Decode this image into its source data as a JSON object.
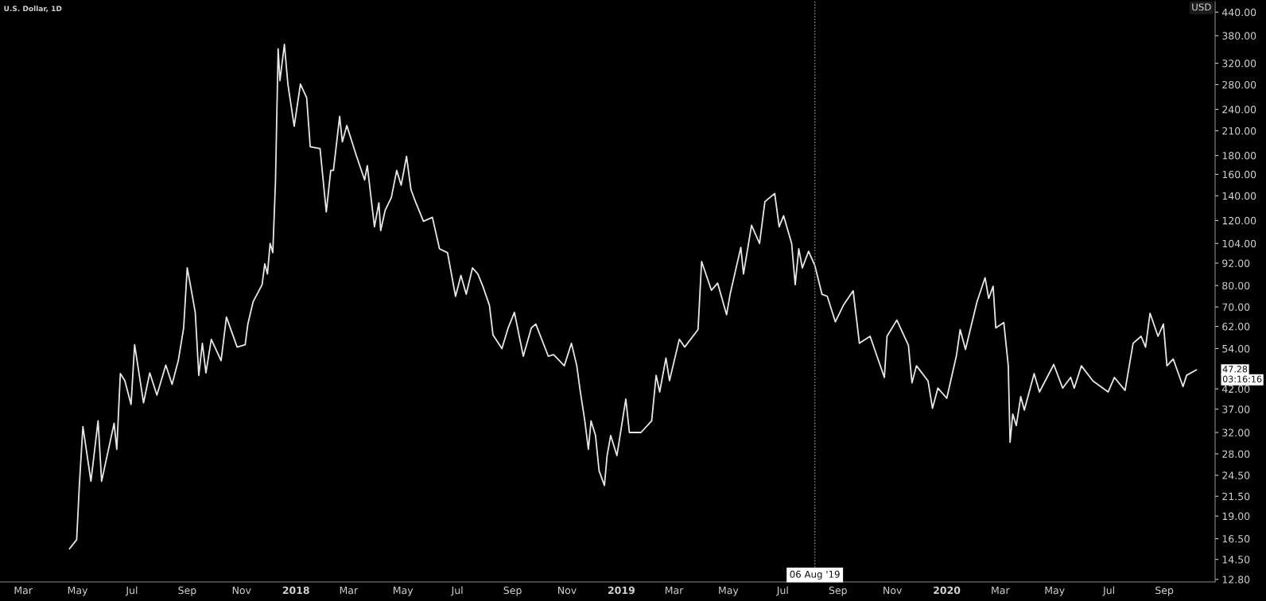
{
  "chart_data": {
    "type": "line",
    "title": "U.S. Dollar, 1D",
    "x": [
      "2017-04-22",
      "2017-04-30",
      "2017-05-03",
      "2017-05-07",
      "2017-05-16",
      "2017-05-24",
      "2017-05-28",
      "2017-06-11",
      "2017-06-14",
      "2017-06-18",
      "2017-06-23",
      "2017-06-30",
      "2017-07-04",
      "2017-07-14",
      "2017-07-21",
      "2017-07-29",
      "2017-08-08",
      "2017-08-15",
      "2017-08-22",
      "2017-08-28",
      "2017-09-01",
      "2017-09-05",
      "2017-09-10",
      "2017-09-14",
      "2017-09-18",
      "2017-09-22",
      "2017-09-28",
      "2017-10-09",
      "2017-10-15",
      "2017-10-27",
      "2017-11-05",
      "2017-11-08",
      "2017-11-14",
      "2017-11-24",
      "2017-11-27",
      "2017-11-30",
      "2017-12-03",
      "2017-12-06",
      "2017-12-09",
      "2017-12-12",
      "2017-12-14",
      "2017-12-19",
      "2017-12-23",
      "2017-12-30",
      "2018-01-06",
      "2018-01-13",
      "2018-01-17",
      "2018-01-28",
      "2018-02-04",
      "2018-02-09",
      "2018-02-12",
      "2018-02-19",
      "2018-02-22",
      "2018-02-27",
      "2018-03-10",
      "2018-03-19",
      "2018-03-22",
      "2018-03-30",
      "2018-04-04",
      "2018-04-06",
      "2018-04-11",
      "2018-04-18",
      "2018-04-24",
      "2018-04-29",
      "2018-05-05",
      "2018-05-10",
      "2018-05-15",
      "2018-05-24",
      "2018-06-03",
      "2018-06-11",
      "2018-06-20",
      "2018-06-29",
      "2018-07-05",
      "2018-07-11",
      "2018-07-18",
      "2018-07-24",
      "2018-07-30",
      "2018-08-06",
      "2018-08-10",
      "2018-08-20",
      "2018-08-27",
      "2018-09-03",
      "2018-09-13",
      "2018-09-22",
      "2018-09-27",
      "2018-10-11",
      "2018-10-17",
      "2018-10-29",
      "2018-11-06",
      "2018-11-12",
      "2018-11-16",
      "2018-11-21",
      "2018-11-25",
      "2018-11-28",
      "2018-12-03",
      "2018-12-07",
      "2018-12-13",
      "2018-12-16",
      "2018-12-20",
      "2018-12-27",
      "2019-01-06",
      "2019-01-10",
      "2019-01-23",
      "2019-02-04",
      "2019-02-09",
      "2019-02-13",
      "2019-02-20",
      "2019-02-24",
      "2019-03-07",
      "2019-03-13",
      "2019-03-28",
      "2019-04-01",
      "2019-04-12",
      "2019-04-19",
      "2019-04-29",
      "2019-05-03",
      "2019-05-15",
      "2019-05-18",
      "2019-05-27",
      "2019-06-05",
      "2019-06-11",
      "2019-06-22",
      "2019-06-27",
      "2019-07-02",
      "2019-07-11",
      "2019-07-15",
      "2019-07-19",
      "2019-07-23",
      "2019-07-30",
      "2019-08-06",
      "2019-08-14",
      "2019-08-20",
      "2019-08-29",
      "2019-09-07",
      "2019-09-18",
      "2019-09-25",
      "2019-10-07",
      "2019-10-23",
      "2019-10-26",
      "2019-11-06",
      "2019-11-19",
      "2019-11-23",
      "2019-11-28",
      "2019-12-11",
      "2019-12-16",
      "2019-12-22",
      "2020-01-01",
      "2020-01-12",
      "2020-01-16",
      "2020-01-22",
      "2020-02-04",
      "2020-02-13",
      "2020-02-17",
      "2020-02-22",
      "2020-02-25",
      "2020-03-05",
      "2020-03-10",
      "2020-03-12",
      "2020-03-15",
      "2020-03-19",
      "2020-03-24",
      "2020-03-28",
      "2020-04-08",
      "2020-04-14",
      "2020-04-30",
      "2020-05-10",
      "2020-05-19",
      "2020-05-23",
      "2020-05-31",
      "2020-06-13",
      "2020-06-30",
      "2020-07-07",
      "2020-07-19",
      "2020-07-28",
      "2020-08-06",
      "2020-08-11",
      "2020-08-16",
      "2020-08-25",
      "2020-08-31",
      "2020-09-04",
      "2020-09-11",
      "2020-09-22",
      "2020-09-26",
      "2020-10-07"
    ],
    "series": [
      {
        "color": "#e6e6e6",
        "values": [
          15.5,
          16.4,
          23.0,
          33.2,
          23.6,
          34.4,
          23.6,
          33.9,
          28.8,
          46.2,
          44.2,
          38.1,
          55.3,
          38.5,
          46.4,
          40.4,
          48.7,
          43.2,
          50.1,
          61.4,
          89.3,
          79.2,
          67.7,
          45.7,
          55.8,
          46.4,
          57.2,
          50.1,
          65.7,
          54.5,
          55.3,
          62.9,
          72.4,
          80.4,
          91.6,
          86.0,
          104,
          98.2,
          152.5,
          350,
          287,
          360,
          280,
          216,
          281,
          258,
          190,
          188,
          126.6,
          164,
          164,
          229.7,
          196,
          217,
          179,
          154.6,
          169,
          115.4,
          134,
          112.7,
          127.8,
          138.6,
          164,
          149.6,
          179,
          145.5,
          135,
          119.4,
          122.4,
          100.6,
          98.2,
          74.8,
          85.2,
          75.8,
          89.3,
          86.0,
          79.2,
          70.7,
          58.8,
          54,
          61.4,
          67.7,
          51.5,
          61.4,
          62.9,
          51.5,
          52.0,
          48.5,
          55.8,
          48.5,
          41.2,
          34.4,
          28.8,
          34.4,
          31.4,
          25.2,
          23.0,
          27.7,
          31.4,
          27.7,
          39.4,
          32,
          32,
          34.4,
          45.7,
          41.2,
          50.9,
          44.2,
          57.2,
          54.5,
          60.8,
          92.9,
          77.7,
          81.2,
          66.7,
          75.8,
          101.5,
          86.0,
          116.5,
          104,
          135,
          142,
          115.4,
          123.6,
          104,
          80.4,
          100.6,
          89.3,
          99.0,
          90.7,
          75.8,
          74.8,
          63.8,
          70.7,
          77.4,
          55.8,
          58.3,
          45.1,
          58.3,
          64.5,
          55.1,
          43.6,
          48.5,
          44.1,
          37.2,
          42.2,
          39.6,
          51.9,
          60.8,
          53.7,
          72.4,
          84.0,
          73.8,
          79.6,
          61.4,
          63.5,
          48.5,
          30.1,
          35.9,
          33.4,
          40.0,
          36.8,
          46.2,
          41.2,
          48.9,
          42.2,
          45.1,
          42.2,
          48.5,
          44.1,
          41.2,
          45.1,
          41.6,
          55.8,
          58.3,
          54.5,
          67.3,
          58.3,
          62.9,
          48.5,
          50.6,
          42.6,
          45.7,
          47.28
        ]
      }
    ],
    "log": "y",
    "xlim": [
      "2017-02-03",
      "2020-10-28"
    ],
    "xticks": [
      {
        "value": "2017-03-01",
        "label": "Mar"
      },
      {
        "value": "2017-05-01",
        "label": "May"
      },
      {
        "value": "2017-07-01",
        "label": "Jul"
      },
      {
        "value": "2017-09-01",
        "label": "Sep"
      },
      {
        "value": "2017-11-01",
        "label": "Nov"
      },
      {
        "value": "2018-01-01",
        "label": "2018"
      },
      {
        "value": "2018-03-01",
        "label": "Mar"
      },
      {
        "value": "2018-05-01",
        "label": "May"
      },
      {
        "value": "2018-07-01",
        "label": "Jul"
      },
      {
        "value": "2018-09-01",
        "label": "Sep"
      },
      {
        "value": "2018-11-01",
        "label": "Nov"
      },
      {
        "value": "2019-01-01",
        "label": "2019"
      },
      {
        "value": "2019-03-01",
        "label": "Mar"
      },
      {
        "value": "2019-05-01",
        "label": "May"
      },
      {
        "value": "2019-07-01",
        "label": "Jul"
      },
      {
        "value": "2019-09-01",
        "label": "Sep"
      },
      {
        "value": "2019-11-01",
        "label": "Nov"
      },
      {
        "value": "2020-01-01",
        "label": "2020"
      },
      {
        "value": "2020-03-01",
        "label": "Mar"
      },
      {
        "value": "2020-05-01",
        "label": "May"
      },
      {
        "value": "2020-07-01",
        "label": "Jul"
      },
      {
        "value": "2020-09-01",
        "label": "Sep"
      }
    ],
    "ylim": [
      12.6,
      470
    ],
    "yticks": [
      {
        "value": 12.8,
        "label": "12.80"
      },
      {
        "value": 14.5,
        "label": "14.50"
      },
      {
        "value": 16.5,
        "label": "16.50"
      },
      {
        "value": 19,
        "label": "19.00"
      },
      {
        "value": 21.5,
        "label": "21.50"
      },
      {
        "value": 24.5,
        "label": "24.50"
      },
      {
        "value": 28,
        "label": "28.00"
      },
      {
        "value": 32,
        "label": "32.00"
      },
      {
        "value": 37,
        "label": "37.00"
      },
      {
        "value": 42,
        "label": "42.00"
      },
      {
        "value": 54,
        "label": "54.00"
      },
      {
        "value": 62,
        "label": "62.00"
      },
      {
        "value": 70,
        "label": "70.00"
      },
      {
        "value": 80,
        "label": "80.00"
      },
      {
        "value": 92,
        "label": "92.00"
      },
      {
        "value": 104,
        "label": "104.00"
      },
      {
        "value": 120,
        "label": "120.00"
      },
      {
        "value": 140,
        "label": "140.00"
      },
      {
        "value": 160,
        "label": "160.00"
      },
      {
        "value": 180,
        "label": "180.00"
      },
      {
        "value": 210,
        "label": "210.00"
      },
      {
        "value": 240,
        "label": "240.00"
      },
      {
        "value": 280,
        "label": "280.00"
      },
      {
        "value": 320,
        "label": "320.00"
      },
      {
        "value": 380,
        "label": "380.00"
      },
      {
        "value": 440,
        "label": "440.00"
      }
    ],
    "ref_lines": [
      {
        "axis": "x",
        "value": "2019-08-06",
        "label": "06 Aug '19",
        "color": "#9a9a9a",
        "line_style": "dotted"
      }
    ],
    "annotations": [
      "47.28",
      "03:16:16",
      "USD"
    ],
    "grid": false,
    "legend": false,
    "marker": "none",
    "line_style": "solid"
  }
}
